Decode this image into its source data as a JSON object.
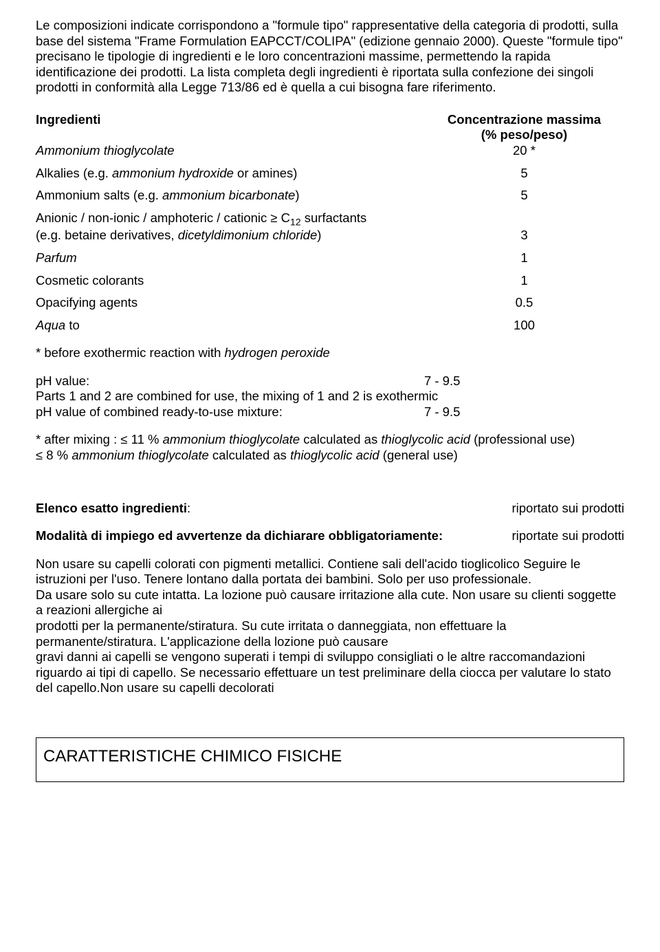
{
  "intro": "Le composizioni indicate corrispondono a \"formule tipo\" rappresentative della categoria di prodotti, sulla base del sistema \"Frame Formulation EAPCCT/COLIPA\" (edizione gennaio 2000). Queste \"formule tipo\" precisano le tipologie di ingredienti e le loro concentrazioni massime, permettendo la rapida identificazione dei prodotti. La lista completa degli ingredienti è riportata sulla confezione dei singoli prodotti in conformità alla Legge 713/86 ed è quella a cui bisogna fare riferimento.",
  "headers": {
    "ingredients": "Ingredienti",
    "conc_line1": "Concentrazione massima",
    "conc_line2": "(% peso/peso)"
  },
  "rows": {
    "r1": {
      "name": "Ammonium thioglycolate",
      "val": "20 *"
    },
    "r2": {
      "name_pre": "Alkalies (e.g. ",
      "name_it": "ammonium hydroxide",
      "name_post": " or amines)",
      "val": "5"
    },
    "r3": {
      "name_pre": "Ammonium salts (e.g. ",
      "name_it": "ammonium bicarbonate",
      "name_post": ")",
      "val": "5"
    },
    "r4": {
      "line1_pre": "Anionic / non-ionic / amphoteric / cationic ≥ C",
      "line1_sub": "12",
      "line1_post": " surfactants",
      "line2_pre": "(e.g. betaine derivatives, ",
      "line2_it": "dicetyldimonium chloride",
      "line2_post": ")",
      "val": "3"
    },
    "r5": {
      "name": "Parfum",
      "val": "1"
    },
    "r6": {
      "name": "Cosmetic colorants",
      "val": "1"
    },
    "r7": {
      "name": "Opacifying agents",
      "val": "0.5"
    },
    "r8": {
      "name_it": "Aqua",
      "name_post": " to",
      "val": "100"
    }
  },
  "note1_pre": "* before exothermic reaction with ",
  "note1_it": "hydrogen peroxide",
  "ph": {
    "label1": "pH value:",
    "val1": "7 - 9.5",
    "mixline": "Parts 1 and 2 are combined for use, the mixing of 1 and 2 is exothermic",
    "label2": "pH value of combined ready-to-use mixture:",
    "val2": "7 - 9.5"
  },
  "after": {
    "l1_pre": "* after mixing : ≤ 11 % ",
    "l1_it1": "ammonium thioglycolate",
    "l1_mid": " calculated as ",
    "l1_it2": "thioglycolic acid",
    "l1_post": " (professional use)",
    "l2_pre": "≤ 8 % ",
    "l2_it1": "ammonium thioglycolate",
    "l2_mid": " calculated as ",
    "l2_it2": "thioglycolic acid",
    "l2_post": " (general use)"
  },
  "elenco": {
    "label": "Elenco esatto ingredienti",
    "colon": ":",
    "val": "riportato sui prodotti"
  },
  "modalita": {
    "label": "Modalità di impiego ed avvertenze da dichiarare obbligatoriamente:",
    "val": "riportate sui prodotti"
  },
  "warnings": "Non usare su capelli colorati con pigmenti metallici. Contiene sali dell'acido tioglicolico Seguire le istruzioni per l'uso. Tenere lontano dalla portata dei bambini. Solo per uso professionale.\nDa usare solo su cute intatta. La lozione può causare irritazione alla cute. Non usare su clienti soggette a reazioni allergiche ai\nprodotti per la permanente/stiratura. Su cute irritata o danneggiata, non effettuare la permanente/stiratura. L'applicazione della lozione può causare\ngravi danni ai capelli se vengono superati i tempi di sviluppo consigliati o le altre raccomandazioni riguardo ai tipi di capello. Se necessario effettuare un test preliminare della ciocca per valutare lo stato del capello.Non usare su capelli decolorati",
  "boxTitle": "CARATTERISTICHE CHIMICO FISICHE"
}
